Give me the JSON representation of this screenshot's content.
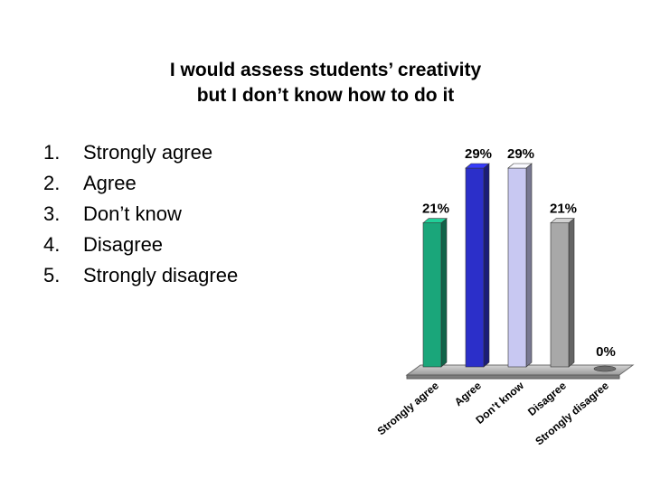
{
  "slide": {
    "title_line1": "I would assess students’ creativity",
    "title_line2": "but I don’t know how to do it"
  },
  "options": [
    {
      "num": "1.",
      "label": "Strongly agree"
    },
    {
      "num": "2.",
      "label": "Agree"
    },
    {
      "num": "3.",
      "label": "Don’t know"
    },
    {
      "num": "4.",
      "label": "Disagree"
    },
    {
      "num": "5.",
      "label": "Strongly disagree"
    }
  ],
  "chart_data": {
    "type": "bar",
    "categories": [
      "Strongly agree",
      "Agree",
      "Don’t know",
      "Disagree",
      "Strongly disagree"
    ],
    "values": [
      21,
      29,
      29,
      21,
      0
    ],
    "data_labels": [
      "21%",
      "29%",
      "29%",
      "21%",
      "0%"
    ],
    "colors": [
      "#1aa67a",
      "#2b2fc9",
      "#c8c8f2",
      "#a8a8a8",
      "#8a8a8a"
    ],
    "title": "",
    "xlabel": "",
    "ylabel": "",
    "ylim": [
      0,
      29
    ],
    "grid": false,
    "legend": "none"
  }
}
